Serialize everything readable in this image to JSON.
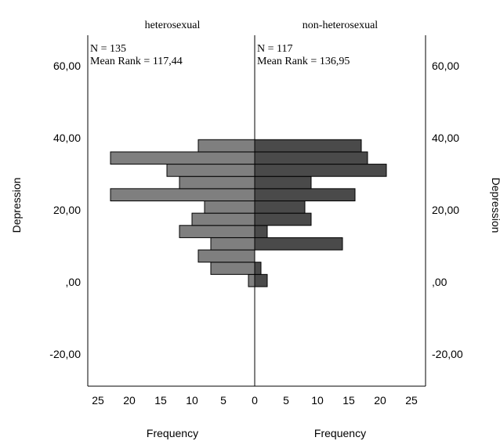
{
  "chart_data": {
    "type": "bar",
    "title": "",
    "panels": [
      {
        "name": "heterosexual",
        "n_label": "N = 135",
        "mean_rank_label": "Mean Rank = 117,44"
      },
      {
        "name": "non-heterosexual",
        "n_label": "N = 117",
        "mean_rank_label": "Mean Rank = 136,95"
      }
    ],
    "bin_width": 3.4,
    "bins": [
      0.4,
      3.8,
      7.2,
      10.6,
      14.0,
      17.4,
      20.8,
      24.2,
      27.6,
      31.0,
      34.4,
      37.8,
      41.2
    ],
    "series": [
      {
        "name": "heterosexual",
        "values": [
          1,
          7,
          9,
          7,
          12,
          10,
          8,
          23,
          12,
          14,
          23,
          9,
          0
        ],
        "color": "#7f7f7f"
      },
      {
        "name": "non-heterosexual",
        "values": [
          2,
          1,
          0,
          14,
          2,
          9,
          8,
          16,
          9,
          21,
          18,
          17,
          0
        ],
        "color": "#4a4a4a"
      }
    ],
    "ylabel": "Depression",
    "xlabel": "Frequency",
    "ylim": [
      -29,
      70
    ],
    "yticks": [
      {
        "value": -20,
        "label": "-20,00"
      },
      {
        "value": 0,
        "label": ",00"
      },
      {
        "value": 20,
        "label": "20,00"
      },
      {
        "value": 40,
        "label": "40,00"
      },
      {
        "value": 60,
        "label": "60,00"
      }
    ],
    "xlim": [
      0,
      26
    ],
    "xticks": [
      25,
      20,
      15,
      10,
      5,
      0
    ]
  }
}
